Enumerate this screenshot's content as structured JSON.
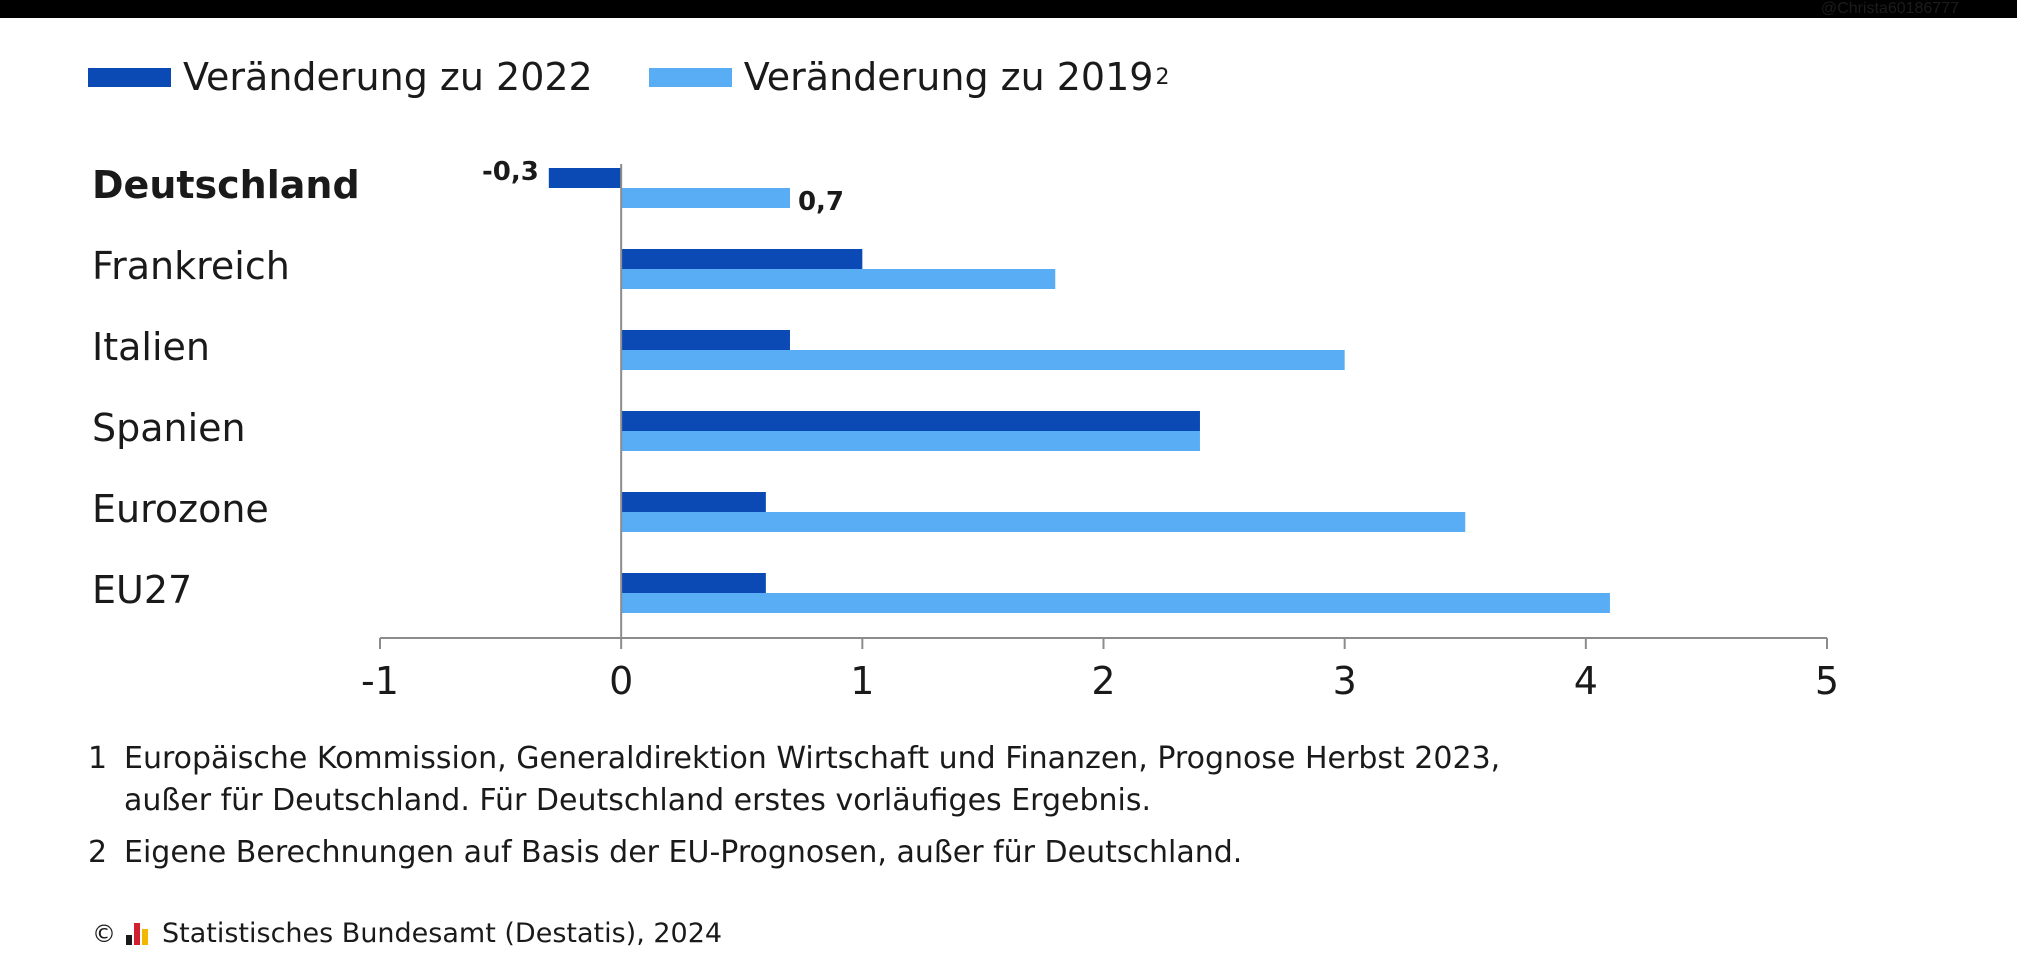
{
  "header": {
    "watermark": "@Christa60186777"
  },
  "colors": {
    "series_2022": "#0b4ab5",
    "series_2019": "#58adf5",
    "axis": "#8c8c8c",
    "text": "#1a1a1a"
  },
  "legend": {
    "item1_label": "Veränderung zu 2022",
    "item2_label": "Veränderung zu 2019",
    "item2_sup": "2"
  },
  "chart_data": {
    "type": "bar",
    "orientation": "horizontal",
    "categories": [
      "Deutschland",
      "Frankreich",
      "Italien",
      "Spanien",
      "Eurozone",
      "EU27"
    ],
    "highlight_category": "Deutschland",
    "series": [
      {
        "name": "Veränderung zu 2022",
        "values": [
          -0.3,
          1.0,
          0.7,
          2.4,
          0.6,
          0.6
        ]
      },
      {
        "name": "Veränderung zu 2019",
        "values": [
          0.7,
          1.8,
          3.0,
          2.4,
          3.5,
          4.1
        ]
      }
    ],
    "data_labels": [
      {
        "category": "Deutschland",
        "series": 0,
        "text": "-0,3"
      },
      {
        "category": "Deutschland",
        "series": 1,
        "text": "0,7"
      }
    ],
    "xlim": [
      -1,
      5
    ],
    "xticks": [
      -1,
      0,
      1,
      2,
      3,
      4,
      5
    ],
    "xtick_labels": [
      "-1",
      "0",
      "1",
      "2",
      "3",
      "4",
      "5"
    ],
    "grid": false,
    "legend_position": "top-left"
  },
  "footnotes": [
    {
      "num": "1",
      "text": "Europäische Kommission, Generaldirektion Wirtschaft und Finanzen, Prognose Herbst 2023,",
      "text2": "außer für Deutschland. Für Deutschland erstes vorläufiges Ergebnis."
    },
    {
      "num": "2",
      "text": "Eigene Berechnungen auf Basis der EU-Prognosen, außer für Deutschland."
    }
  ],
  "source": {
    "copyright_symbol": "©",
    "text": "Statistisches Bundesamt (Destatis), 2024"
  }
}
